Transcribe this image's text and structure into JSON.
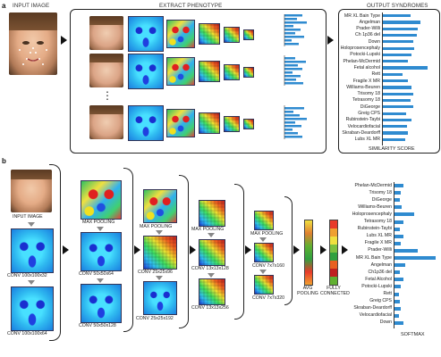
{
  "panel_a": {
    "letter": "a",
    "input_label": "INPUT IMAGE",
    "extract_label": "EXTRACT PHENOTYPE",
    "output_label": "OUTPUT SYNDROMES",
    "ellipsis": "⋮",
    "syndromes": [
      "MR XL Bain Type",
      "Angelman",
      "Prader-Willi",
      "Ch 1p36 del",
      "Down",
      "Holoprosencephaly",
      "Potocki-Lupski",
      "Phelan-McDermid",
      "Fetal alcohol",
      "Rett",
      "Fragile X MR",
      "Williams-Beuren",
      "Trisomy 18",
      "Tetrasomy 18",
      "DiGeorge",
      "Greig CPS",
      "Rubinstein-Taybi",
      "Velocardiofacial",
      "Skraban-Deardorff",
      "Lubs XL MR"
    ],
    "scores": [
      0.55,
      0.75,
      0.7,
      0.68,
      0.6,
      0.62,
      0.58,
      0.5,
      0.9,
      0.4,
      0.5,
      0.58,
      0.6,
      0.55,
      0.6,
      0.47,
      0.57,
      0.48,
      0.5,
      0.45
    ],
    "axis_label": "SIMILARITY SCORE"
  },
  "panel_b": {
    "letter": "b",
    "input_label": "INPUT IMAGE",
    "layers": {
      "conv1": "CONV 100x100x32",
      "conv2": "CONV 100x100x64",
      "pool1": "MAX POOLING",
      "conv3": "CONV 50x50x64",
      "conv4": "CONV 50x50x128",
      "pool2": "MAX POOLING",
      "conv5": "CONV 25x25x96",
      "conv6": "CONV 25x25x192",
      "pool3": "MAX POOLING",
      "conv7": "CONV 13x13x128",
      "conv8": "CONV 13x13x256",
      "pool4": "MAX POOLING",
      "conv9": "CONV 7x7x160",
      "conv10": "CONV 7x7x320",
      "avg_pool": "AVG POOLING",
      "fc": "FULLY CONNECTED"
    },
    "syndromes": [
      "Phelan-McDermid",
      "Trisomy 18",
      "DiGeorge",
      "Williams-Beuren",
      "Holoprosencephaly",
      "Tetrasomy 18",
      "Rubinstein-Taybi",
      "Lubs XL MR",
      "Fragile X MR",
      "Prader-Willi",
      "MR XL Bain Type",
      "Angelman",
      "Ch1p36 del",
      "Fetal Alcohol",
      "Potocki-Lupski",
      "Rett",
      "Greig CPS",
      "Skraban-Deardorff",
      "Velocardiofacial",
      "Down"
    ],
    "scores": [
      0.2,
      0.15,
      0.12,
      0.16,
      0.45,
      0.2,
      0.13,
      0.2,
      0.15,
      0.55,
      0.95,
      0.25,
      0.12,
      0.2,
      0.15,
      0.1,
      0.12,
      0.14,
      0.1,
      0.2
    ],
    "axis_label": "SOFTMAX",
    "fc_colors": [
      "#e83a2a",
      "#f0a030",
      "#f0e040",
      "#7cc040",
      "#30a040",
      "#e86020",
      "#c02020",
      "#60b030"
    ]
  }
}
